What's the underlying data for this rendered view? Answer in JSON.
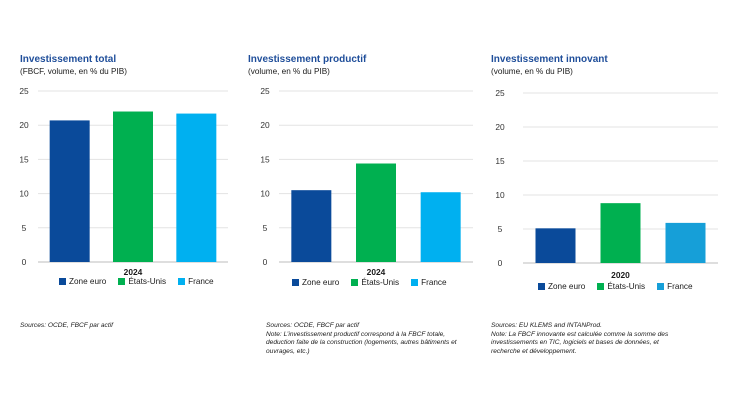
{
  "chart_data": [
    {
      "type": "bar",
      "title": "Investissement total",
      "subtitle": "(FBCF, volume, en % du PIB)",
      "categories": [
        "Zone euro",
        "États-Unis",
        "France"
      ],
      "values": [
        20.7,
        22.0,
        21.7
      ],
      "colors": [
        "#0a4a9a",
        "#00b050",
        "#00b0f0"
      ],
      "xlabel": "2024",
      "ylim": [
        0,
        25
      ],
      "yticks": [
        0,
        5,
        10,
        15,
        20,
        25
      ],
      "grid": true,
      "legend": "bottom",
      "note_lines": [
        "Sources: OCDE, FBCF par actif"
      ]
    },
    {
      "type": "bar",
      "title": "Investissement productif",
      "subtitle": "(volume, en % du PIB)",
      "categories": [
        "Zone euro",
        "États-Unis",
        "France"
      ],
      "values": [
        10.5,
        14.4,
        10.2
      ],
      "colors": [
        "#0a4a9a",
        "#00b050",
        "#00b0f0"
      ],
      "xlabel": "2024",
      "ylim": [
        0,
        25
      ],
      "yticks": [
        0,
        5,
        10,
        15,
        20,
        25
      ],
      "grid": true,
      "legend": "bottom",
      "note_lines": [
        "Sources: OCDE, FBCF par actif",
        "Note: L’investissement productif correspond à la FBCF totale,",
        "deduction faite de la construction (logements, autres bâtiments et",
        "ouvrages, etc.)"
      ]
    },
    {
      "type": "bar",
      "title": "Investissement innovant",
      "subtitle": "(volume, en % du PIB)",
      "categories": [
        "Zone euro",
        "États-Unis",
        "France"
      ],
      "values": [
        5.1,
        8.8,
        5.9
      ],
      "colors": [
        "#0a4a9a",
        "#00b050",
        "#169fd8"
      ],
      "xlabel": "2020",
      "ylim": [
        0,
        25
      ],
      "yticks": [
        0,
        5,
        10,
        15,
        20,
        25
      ],
      "grid": true,
      "legend": "bottom",
      "note_lines": [
        "Sources: EU KLEMS and INTANProd.",
        "Note: La FBCF innovante est calculée comme la somme des",
        "investissements en TIC, logiciels et bases de données, et",
        "recherche et développement."
      ]
    }
  ]
}
